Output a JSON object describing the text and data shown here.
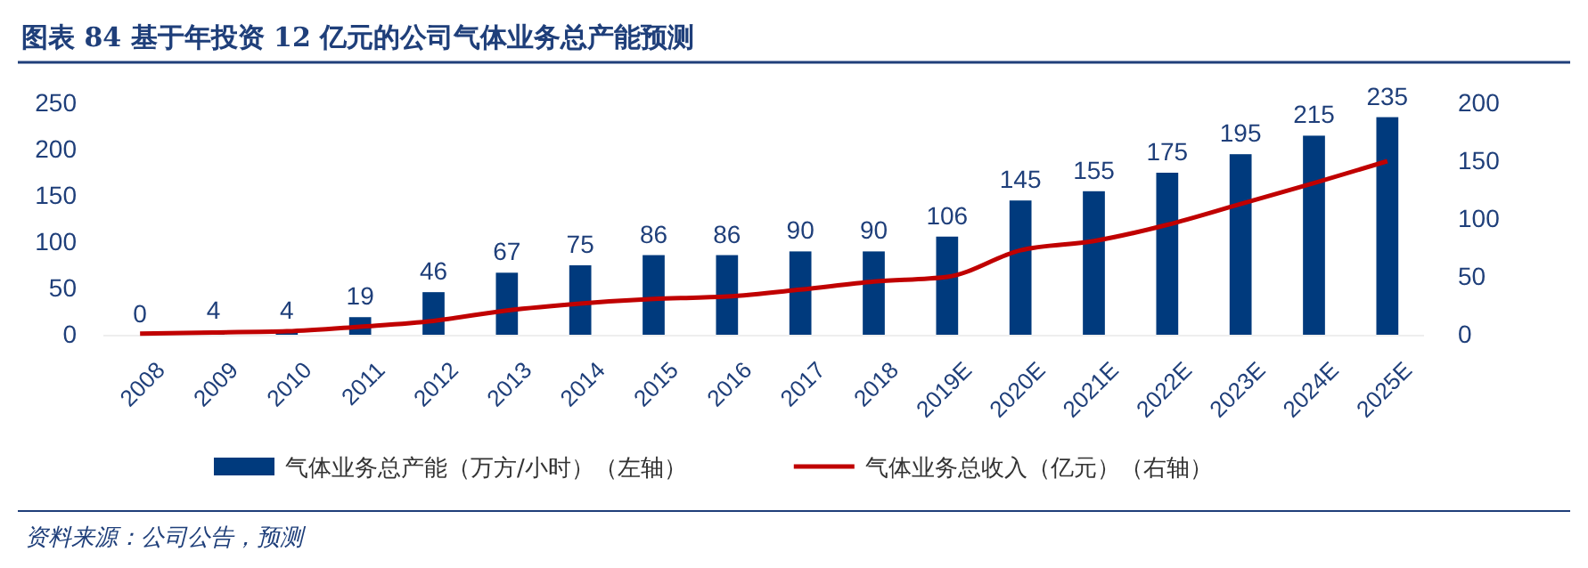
{
  "chart_data": {
    "type": "bar",
    "title": "图表 84  基于年投资 12 亿元的公司气体业务总产能预测",
    "categories": [
      "2008",
      "2009",
      "2010",
      "2011",
      "2012",
      "2013",
      "2014",
      "2015",
      "2016",
      "2017",
      "2018",
      "2019E",
      "2020E",
      "2021E",
      "2022E",
      "2023E",
      "2024E",
      "2025E"
    ],
    "series": [
      {
        "name": "气体业务总产能（万方/小时）（左轴）",
        "color": "#003a7d",
        "values": [
          0,
          4,
          4,
          19,
          46,
          67,
          75,
          86,
          86,
          90,
          90,
          106,
          145,
          155,
          175,
          195,
          215,
          235
        ],
        "value_labels": [
          "0",
          "4",
          "4",
          "19",
          "46",
          "67",
          "75",
          "86",
          "86",
          "90",
          "90",
          "106",
          "145",
          "155",
          "175",
          "195",
          "215",
          "235"
        ]
      },
      {
        "name": "气体业务总收入（亿元）（右轴）",
        "type": "line",
        "axis": "y2",
        "color": "#c00000",
        "values": [
          1,
          2,
          3,
          7,
          12,
          21,
          27,
          31,
          33,
          39,
          46,
          50,
          73,
          81,
          95,
          113,
          131,
          150
        ]
      }
    ],
    "ylim": [
      0,
      250
    ],
    "yticks": [
      0,
      50,
      100,
      150,
      200,
      250
    ],
    "y2lim": [
      0,
      200
    ],
    "y2ticks": [
      0,
      50,
      100,
      150,
      200
    ],
    "legend": "bottom",
    "grid": false,
    "annotations": [
      "资料来源：公司公告，预测"
    ]
  }
}
